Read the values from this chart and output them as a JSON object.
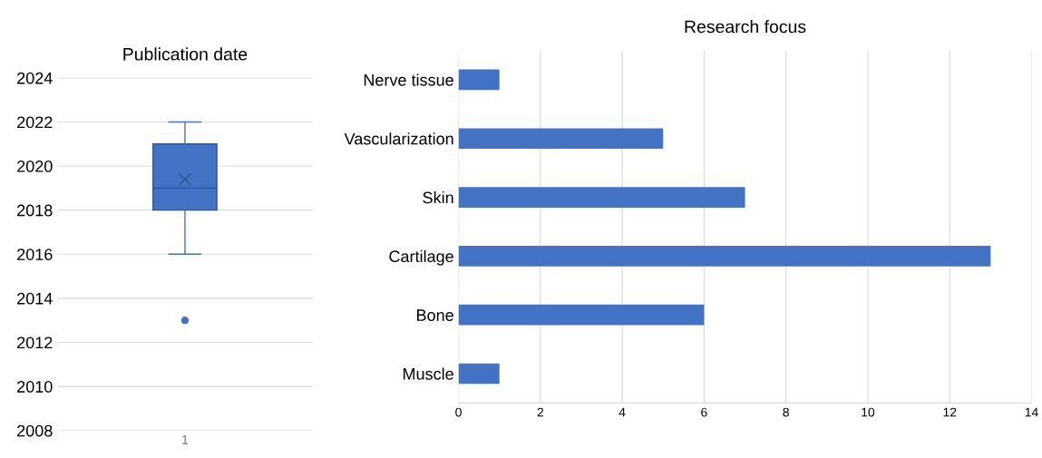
{
  "chart_data": [
    {
      "type": "box",
      "title": "Publication date",
      "categories": [
        "1"
      ],
      "color": "#4472c4",
      "boxes": [
        {
          "low": 2016,
          "q1": 2018,
          "median": 2019,
          "q3": 2021,
          "high": 2022,
          "mean": 2019.4,
          "outliers": [
            2013
          ]
        }
      ],
      "ylim": [
        2008,
        2024
      ],
      "yticks": [
        2008,
        2010,
        2012,
        2014,
        2016,
        2018,
        2020,
        2022,
        2024
      ],
      "grid": "y"
    },
    {
      "type": "bar",
      "title": "Research focus",
      "orientation": "horizontal",
      "categories": [
        "Nerve tissue",
        "Vascularization",
        "Skin",
        "Cartilage",
        "Bone",
        "Muscle"
      ],
      "values": [
        1,
        5,
        7,
        13,
        6,
        1
      ],
      "color": "#4472c4",
      "xlim": [
        0,
        14
      ],
      "xticks": [
        0,
        2,
        4,
        6,
        8,
        10,
        12,
        14
      ],
      "grid": "x"
    }
  ]
}
